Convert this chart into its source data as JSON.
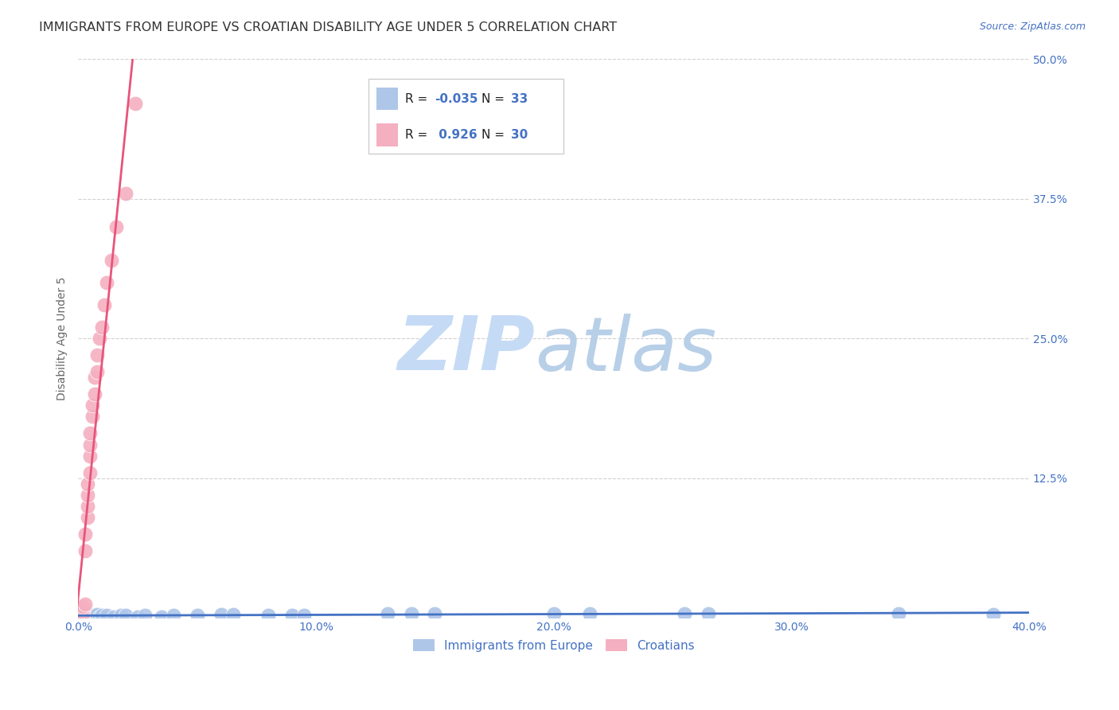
{
  "title": "IMMIGRANTS FROM EUROPE VS CROATIAN DISABILITY AGE UNDER 5 CORRELATION CHART",
  "source": "Source: ZipAtlas.com",
  "ylabel": "Disability Age Under 5",
  "watermark_zip": "ZIP",
  "watermark_atlas": "atlas",
  "legend_labels": [
    "Immigrants from Europe",
    "Croatians"
  ],
  "xlim": [
    0.0,
    0.4
  ],
  "ylim": [
    0.0,
    0.5
  ],
  "xticks": [
    0.0,
    0.1,
    0.2,
    0.3,
    0.4
  ],
  "yticks": [
    0.0,
    0.125,
    0.25,
    0.375,
    0.5
  ],
  "xticklabels": [
    "0.0%",
    "10.0%",
    "20.0%",
    "30.0%",
    "40.0%"
  ],
  "yticklabels_right": [
    "",
    "12.5%",
    "25.0%",
    "37.5%",
    "50.0%"
  ],
  "blue_scatter": [
    [
      0.001,
      0.003
    ],
    [
      0.002,
      0.002
    ],
    [
      0.003,
      0.003
    ],
    [
      0.004,
      0.002
    ],
    [
      0.005,
      0.002
    ],
    [
      0.006,
      0.002
    ],
    [
      0.007,
      0.002
    ],
    [
      0.008,
      0.003
    ],
    [
      0.009,
      0.001
    ],
    [
      0.01,
      0.002
    ],
    [
      0.012,
      0.002
    ],
    [
      0.015,
      0.001
    ],
    [
      0.018,
      0.002
    ],
    [
      0.02,
      0.002
    ],
    [
      0.025,
      0.001
    ],
    [
      0.028,
      0.002
    ],
    [
      0.035,
      0.001
    ],
    [
      0.04,
      0.002
    ],
    [
      0.05,
      0.002
    ],
    [
      0.06,
      0.003
    ],
    [
      0.065,
      0.003
    ],
    [
      0.08,
      0.002
    ],
    [
      0.09,
      0.002
    ],
    [
      0.095,
      0.002
    ],
    [
      0.13,
      0.004
    ],
    [
      0.14,
      0.004
    ],
    [
      0.15,
      0.004
    ],
    [
      0.2,
      0.004
    ],
    [
      0.215,
      0.004
    ],
    [
      0.255,
      0.004
    ],
    [
      0.265,
      0.004
    ],
    [
      0.345,
      0.004
    ],
    [
      0.385,
      0.003
    ]
  ],
  "pink_scatter": [
    [
      0.001,
      0.003
    ],
    [
      0.001,
      0.005
    ],
    [
      0.002,
      0.004
    ],
    [
      0.002,
      0.008
    ],
    [
      0.002,
      0.01
    ],
    [
      0.003,
      0.012
    ],
    [
      0.003,
      0.06
    ],
    [
      0.003,
      0.075
    ],
    [
      0.004,
      0.09
    ],
    [
      0.004,
      0.1
    ],
    [
      0.004,
      0.11
    ],
    [
      0.004,
      0.12
    ],
    [
      0.005,
      0.13
    ],
    [
      0.005,
      0.145
    ],
    [
      0.005,
      0.155
    ],
    [
      0.005,
      0.165
    ],
    [
      0.006,
      0.18
    ],
    [
      0.006,
      0.19
    ],
    [
      0.007,
      0.2
    ],
    [
      0.007,
      0.215
    ],
    [
      0.008,
      0.22
    ],
    [
      0.008,
      0.235
    ],
    [
      0.009,
      0.25
    ],
    [
      0.01,
      0.26
    ],
    [
      0.011,
      0.28
    ],
    [
      0.012,
      0.3
    ],
    [
      0.014,
      0.32
    ],
    [
      0.016,
      0.35
    ],
    [
      0.02,
      0.38
    ],
    [
      0.024,
      0.46
    ]
  ],
  "blue_line_color": "#4472c4",
  "pink_line_color": "#e8547a",
  "scatter_blue_color": "#aec6e8",
  "scatter_pink_color": "#f4afc0",
  "title_color": "#333333",
  "axis_color": "#4472c4",
  "grid_color": "#d0d0d0",
  "background_color": "#ffffff",
  "watermark_zip_color": "#c5daf5",
  "watermark_atlas_color": "#b8cfe8",
  "title_fontsize": 11.5,
  "axis_label_fontsize": 10,
  "tick_fontsize": 10,
  "source_fontsize": 9
}
